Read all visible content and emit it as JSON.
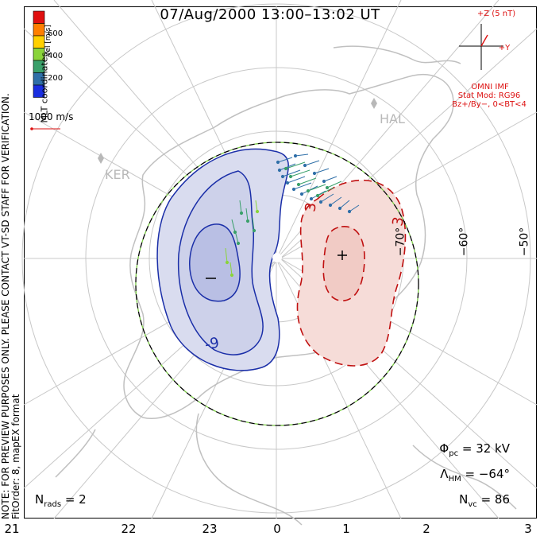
{
  "title": "07/Aug/2000 13:00–13:02 UT",
  "side_note": {
    "line1": "NOTE: FOR PREVIEW PURPOSES ONLY. PLEASE CONTACT VT-SD STAFF FOR VERIFICATION.",
    "line2": "FitOrder: 8, mapEX format"
  },
  "coord_label": "MLT coordinates",
  "colorbar": {
    "label": "Vel [m/s]",
    "ticks": [
      "600",
      "400",
      "200"
    ],
    "colors": [
      "#e01010",
      "#ff7f00",
      "#ffd000",
      "#8ad43a",
      "#3aa06a",
      "#2f6fa8",
      "#1a2ee0"
    ]
  },
  "reference_vector": {
    "label": "1000 m/s",
    "color": "#d11"
  },
  "imf": {
    "axis_z": "+Z (5 nT)",
    "axis_y": "+Y",
    "source": "OMNI IMF",
    "model": "Stat Mod: RG96",
    "condition": "Bz+/By−, 0<BT<4",
    "color": "#d11"
  },
  "stats": {
    "phi_pc": {
      "symbol": "Φ",
      "sub": "pc",
      "value": "=  32 kV"
    },
    "lambda_hm": {
      "symbol": "Λ",
      "sub": "HM",
      "value": "=  −64°"
    },
    "n_vc": {
      "symbol": "N",
      "sub": "vc",
      "value": "=  86"
    }
  },
  "nrads": {
    "symbol": "N",
    "sub": "rads",
    "value": "=  2"
  },
  "mlt_ticks": [
    "21",
    "22",
    "23",
    "0",
    "1",
    "2",
    "3"
  ],
  "lat_labels": [
    "−70°",
    "−60°",
    "−50°"
  ],
  "stations": [
    "KER",
    "HAL"
  ],
  "contour_labels": {
    "negative": "-9",
    "positive_top": "3",
    "positive_right": "3"
  },
  "colors": {
    "negative_cell": "#1a2ea8",
    "negative_fill": "#d9dcef",
    "positive_cell": "#c01010",
    "positive_fill": "#f6dcd8",
    "grid": "#c8c8c8",
    "heppner_maynard": "#7acc44"
  }
}
